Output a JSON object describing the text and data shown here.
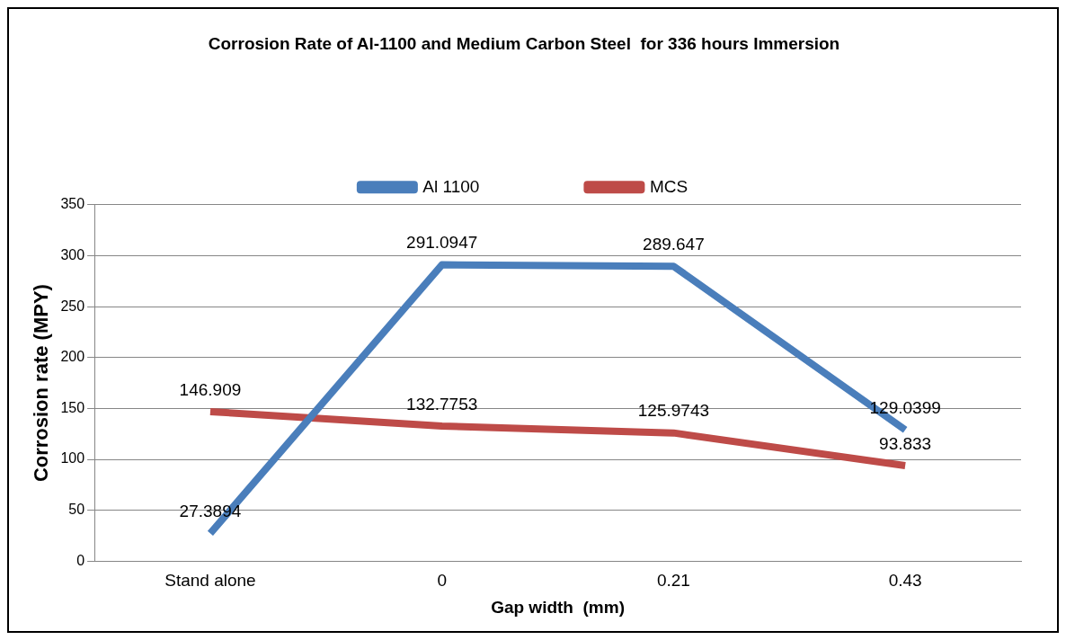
{
  "chart_data": {
    "type": "line",
    "title": "Corrosion Rate of Al-1100 and Medium Carbon Steel  for 336 hours Immersion",
    "xlabel": "Gap width  (mm)",
    "ylabel": "Corrosion rate (MPY)",
    "categories": [
      "Stand alone",
      "0",
      "0.21",
      "0.43"
    ],
    "series": [
      {
        "name": "Al 1100",
        "color": "#4a7ebb",
        "values": [
          27.3894,
          291.0947,
          289.647,
          129.0399
        ]
      },
      {
        "name": "MCS",
        "color": "#be4b48",
        "values": [
          146.909,
          132.7753,
          125.9743,
          93.833
        ]
      }
    ],
    "ylim": [
      0,
      350
    ],
    "yticks": [
      0,
      50,
      100,
      150,
      200,
      250,
      300,
      350
    ],
    "grid": "y",
    "legend": "top",
    "marker": "none",
    "line_style": "solid",
    "data_labels": true
  }
}
